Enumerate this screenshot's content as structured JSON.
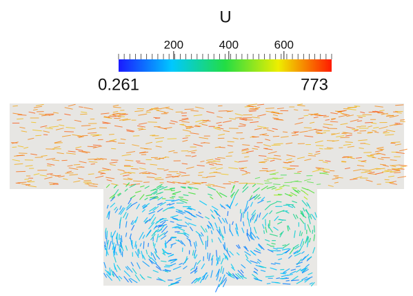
{
  "colorbar": {
    "title": "U",
    "range": [
      0.261,
      773
    ],
    "ticks": [
      200,
      400,
      600
    ]
  }
}
